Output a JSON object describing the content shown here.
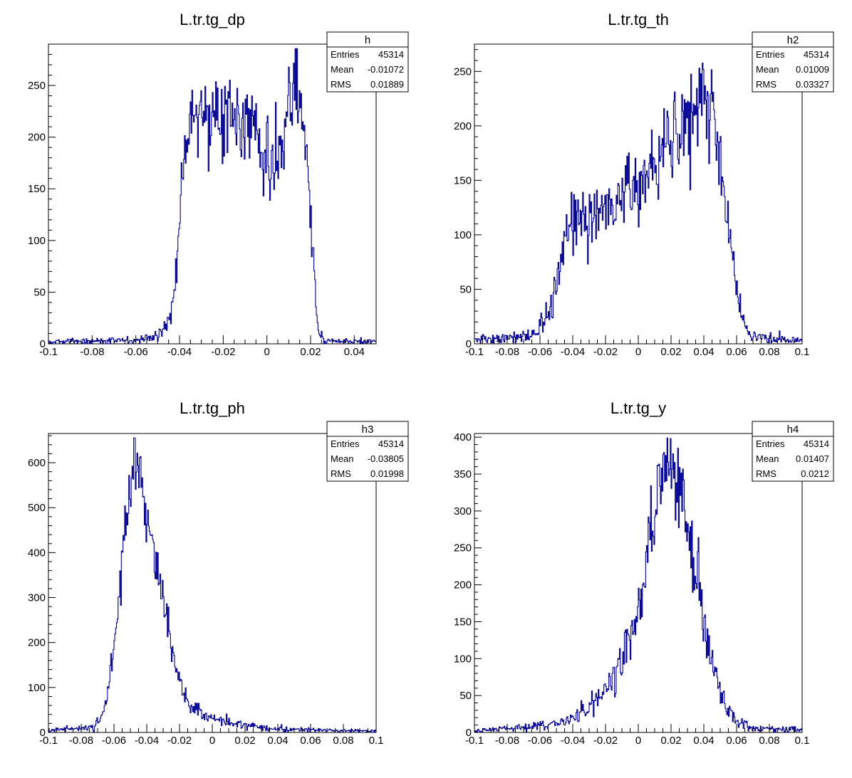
{
  "colors": {
    "histogram_line": "#000099",
    "frame": "#000000",
    "background": "#ffffff"
  },
  "chart_data": [
    {
      "type": "histogram",
      "title": "L.tr.tg_dp",
      "xlim": [
        -0.1,
        0.05
      ],
      "ylim": [
        0,
        290
      ],
      "x_ticks": [
        -0.1,
        -0.08,
        -0.06,
        -0.04,
        -0.02,
        0,
        0.02,
        0.04
      ],
      "x_tick_labels": [
        "-0.1",
        "-0.08",
        "-0.06",
        "-0.04",
        "-0.02",
        "0",
        "0.02",
        "0.04"
      ],
      "y_ticks": [
        0,
        50,
        100,
        150,
        200,
        250
      ],
      "y_tick_labels": [
        "0",
        "50",
        "100",
        "150",
        "200",
        "250"
      ],
      "stats": {
        "name": "h",
        "entries": "45314",
        "mean": "-0.01072",
        "rms": "0.01889"
      },
      "shape_points": [
        [
          -0.1,
          2
        ],
        [
          -0.06,
          3
        ],
        [
          -0.052,
          6
        ],
        [
          -0.047,
          14
        ],
        [
          -0.044,
          30
        ],
        [
          -0.042,
          55
        ],
        [
          -0.04,
          110
        ],
        [
          -0.039,
          170
        ],
        [
          -0.037,
          210
        ],
        [
          -0.034,
          225
        ],
        [
          -0.03,
          225
        ],
        [
          -0.02,
          220
        ],
        [
          -0.01,
          215
        ],
        [
          -0.005,
          205
        ],
        [
          -0.002,
          180
        ],
        [
          0.002,
          165
        ],
        [
          0.005,
          175
        ],
        [
          0.008,
          200
        ],
        [
          0.011,
          238
        ],
        [
          0.013,
          258
        ],
        [
          0.015,
          242
        ],
        [
          0.017,
          215
        ],
        [
          0.019,
          185
        ],
        [
          0.02,
          120
        ],
        [
          0.021,
          85
        ],
        [
          0.022,
          50
        ],
        [
          0.023,
          22
        ],
        [
          0.024,
          8
        ],
        [
          0.026,
          3
        ],
        [
          0.05,
          2
        ]
      ],
      "noise": 0.08
    },
    {
      "type": "histogram",
      "title": "L.tr.tg_th",
      "xlim": [
        -0.1,
        0.1
      ],
      "ylim": [
        0,
        275
      ],
      "x_ticks": [
        -0.1,
        -0.08,
        -0.06,
        -0.04,
        -0.02,
        0,
        0.02,
        0.04,
        0.06,
        0.08,
        0.1
      ],
      "x_tick_labels": [
        "-0.1",
        "-0.08",
        "-0.06",
        "-0.04",
        "-0.02",
        "0",
        "0.02",
        "0.04",
        "0.06",
        "0.08",
        "0.1"
      ],
      "y_ticks": [
        0,
        50,
        100,
        150,
        200,
        250
      ],
      "y_tick_labels": [
        "0",
        "50",
        "100",
        "150",
        "200",
        "250"
      ],
      "stats": {
        "name": "h2",
        "entries": "45314",
        "mean": "0.01009",
        "rms": "0.03327"
      },
      "shape_points": [
        [
          -0.1,
          5
        ],
        [
          -0.07,
          6
        ],
        [
          -0.062,
          10
        ],
        [
          -0.057,
          22
        ],
        [
          -0.052,
          45
        ],
        [
          -0.048,
          70
        ],
        [
          -0.044,
          95
        ],
        [
          -0.04,
          110
        ],
        [
          -0.03,
          120
        ],
        [
          -0.02,
          125
        ],
        [
          -0.01,
          135
        ],
        [
          0,
          150
        ],
        [
          0.01,
          165
        ],
        [
          0.02,
          185
        ],
        [
          0.03,
          200
        ],
        [
          0.035,
          215
        ],
        [
          0.04,
          232
        ],
        [
          0.045,
          220
        ],
        [
          0.048,
          190
        ],
        [
          0.051,
          150
        ],
        [
          0.054,
          120
        ],
        [
          0.057,
          85
        ],
        [
          0.06,
          50
        ],
        [
          0.063,
          25
        ],
        [
          0.066,
          12
        ],
        [
          0.07,
          6
        ],
        [
          0.1,
          3
        ]
      ],
      "noise": 0.09
    },
    {
      "type": "histogram",
      "title": "L.tr.tg_ph",
      "xlim": [
        -0.1,
        0.1
      ],
      "ylim": [
        0,
        665
      ],
      "x_ticks": [
        -0.1,
        -0.08,
        -0.06,
        -0.04,
        -0.02,
        0,
        0.02,
        0.04,
        0.06,
        0.08,
        0.1
      ],
      "x_tick_labels": [
        "-0.1",
        "-0.08",
        "-0.06",
        "-0.04",
        "-0.02",
        "0",
        "0.02",
        "0.04",
        "0.06",
        "0.08",
        "0.1"
      ],
      "y_ticks": [
        0,
        100,
        200,
        300,
        400,
        500,
        600
      ],
      "y_tick_labels": [
        "0",
        "100",
        "200",
        "300",
        "400",
        "500",
        "600"
      ],
      "stats": {
        "name": "h3",
        "entries": "45314",
        "mean": "-0.03805",
        "rms": "0.01998"
      },
      "shape_points": [
        [
          -0.1,
          5
        ],
        [
          -0.08,
          8
        ],
        [
          -0.072,
          15
        ],
        [
          -0.068,
          30
        ],
        [
          -0.064,
          80
        ],
        [
          -0.06,
          180
        ],
        [
          -0.057,
          300
        ],
        [
          -0.054,
          420
        ],
        [
          -0.051,
          540
        ],
        [
          -0.048,
          610
        ],
        [
          -0.046,
          625
        ],
        [
          -0.044,
          580
        ],
        [
          -0.041,
          500
        ],
        [
          -0.037,
          420
        ],
        [
          -0.033,
          350
        ],
        [
          -0.029,
          280
        ],
        [
          -0.025,
          200
        ],
        [
          -0.021,
          130
        ],
        [
          -0.017,
          80
        ],
        [
          -0.012,
          55
        ],
        [
          -0.005,
          40
        ],
        [
          0.005,
          28
        ],
        [
          0.02,
          15
        ],
        [
          0.04,
          8
        ],
        [
          0.06,
          5
        ],
        [
          0.1,
          3
        ]
      ],
      "noise": 0.06
    },
    {
      "type": "histogram",
      "title": "L.tr.tg_y",
      "xlim": [
        -0.1,
        0.1
      ],
      "ylim": [
        0,
        405
      ],
      "x_ticks": [
        -0.1,
        -0.08,
        -0.06,
        -0.04,
        -0.02,
        0,
        0.02,
        0.04,
        0.06,
        0.08,
        0.1
      ],
      "x_tick_labels": [
        "-0.1",
        "-0.08",
        "-0.06",
        "-0.04",
        "-0.02",
        "0",
        "0.02",
        "0.04",
        "0.06",
        "0.08",
        "0.1"
      ],
      "y_ticks": [
        0,
        50,
        100,
        150,
        200,
        250,
        300,
        350,
        400
      ],
      "y_tick_labels": [
        "0",
        "50",
        "100",
        "150",
        "200",
        "250",
        "300",
        "350",
        "400"
      ],
      "stats": {
        "name": "h4",
        "entries": "45314",
        "mean": "0.01407",
        "rms": "0.0212"
      },
      "shape_points": [
        [
          -0.1,
          3
        ],
        [
          -0.07,
          6
        ],
        [
          -0.05,
          12
        ],
        [
          -0.04,
          20
        ],
        [
          -0.03,
          32
        ],
        [
          -0.02,
          55
        ],
        [
          -0.01,
          95
        ],
        [
          0,
          160
        ],
        [
          0.005,
          230
        ],
        [
          0.01,
          310
        ],
        [
          0.015,
          360
        ],
        [
          0.02,
          370
        ],
        [
          0.025,
          345
        ],
        [
          0.03,
          290
        ],
        [
          0.035,
          220
        ],
        [
          0.04,
          150
        ],
        [
          0.045,
          95
        ],
        [
          0.05,
          55
        ],
        [
          0.055,
          30
        ],
        [
          0.06,
          15
        ],
        [
          0.07,
          6
        ],
        [
          0.1,
          3
        ]
      ],
      "noise": 0.07
    }
  ]
}
